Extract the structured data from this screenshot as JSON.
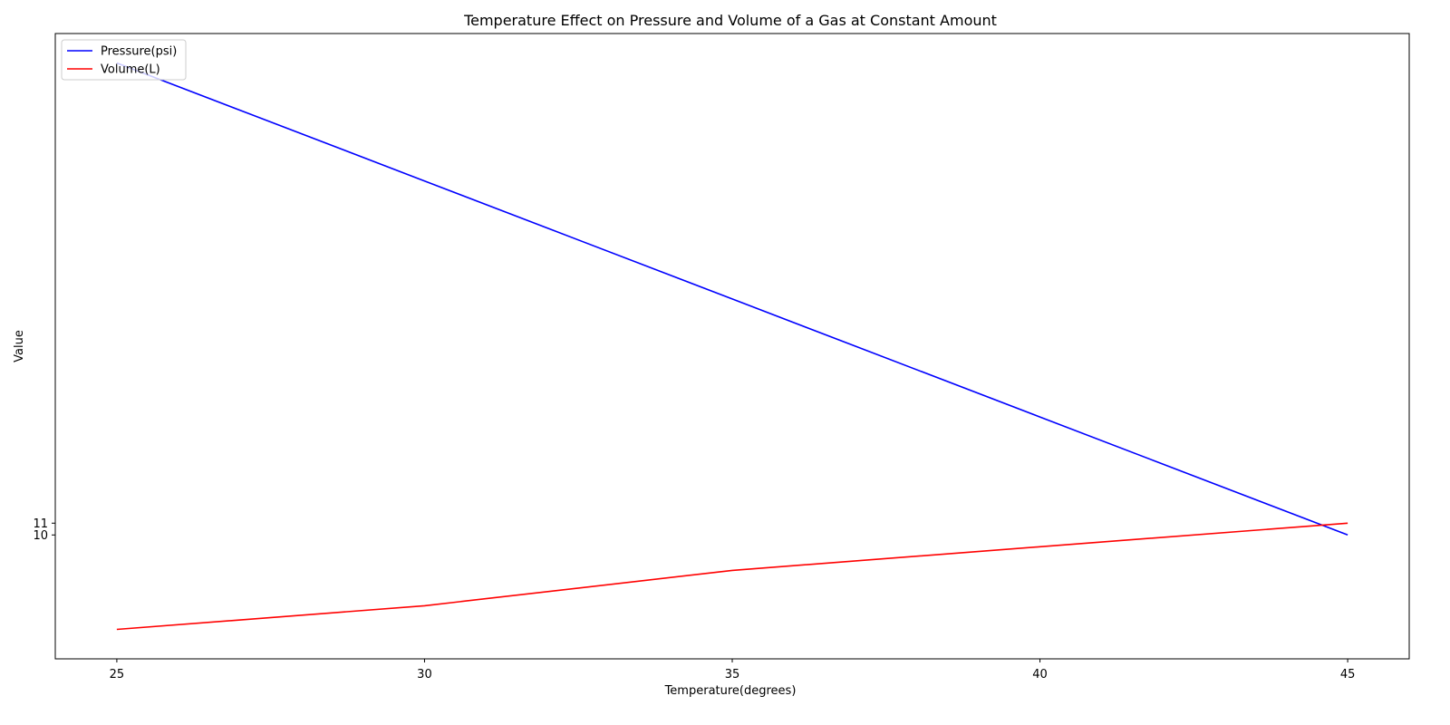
{
  "chart_data": {
    "type": "line",
    "title": "Temperature Effect on Pressure and Volume of a Gas at Constant Amount",
    "xlabel": "Temperature(degrees)",
    "ylabel": "Value",
    "x": [
      25,
      30,
      35,
      40,
      45
    ],
    "xticks": [
      25,
      30,
      35,
      40,
      45
    ],
    "yticks": [
      10,
      11
    ],
    "xlim": [
      24,
      46
    ],
    "ylim": [
      -0.5,
      52.5
    ],
    "grid": false,
    "legend_position": "upper-left",
    "series": [
      {
        "name": "Pressure(psi)",
        "color": "#0000ff",
        "values": [
          50,
          40,
          30,
          20,
          10
        ]
      },
      {
        "name": "Volume(L)",
        "color": "#ff0000",
        "values": [
          2,
          4,
          7,
          9,
          11
        ]
      }
    ]
  }
}
